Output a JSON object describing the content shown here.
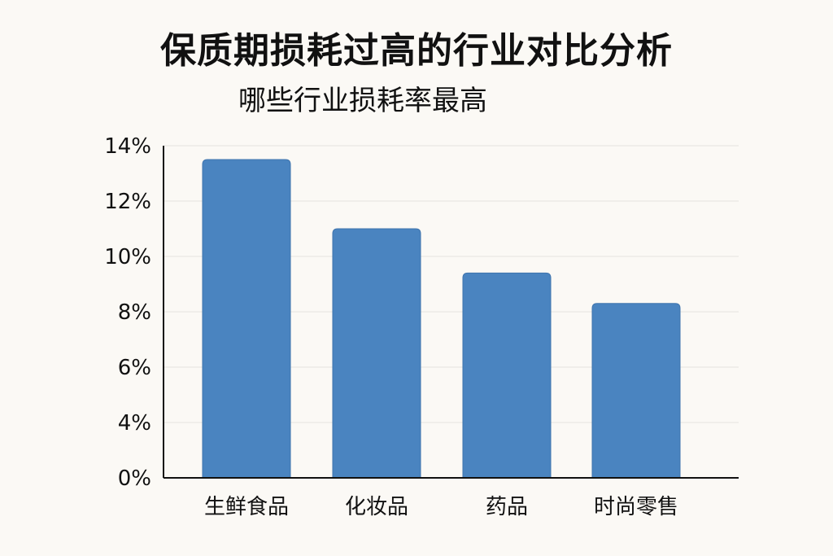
{
  "title": "保质期损耗过高的行业对比分析",
  "subtitle": "哪些行业损耗率最高",
  "colors": {
    "bar": "#4a84c0",
    "bar_stroke": "#3f74ad",
    "grid": "#e4e2de",
    "axis": "#111111",
    "background": "#fbf9f5"
  },
  "chart_data": {
    "type": "bar",
    "title": "保质期损耗过高的行业对比分析",
    "subtitle": "哪些行业损耗率最高",
    "categories": [
      "生鲜食品",
      "化妆品",
      "药品",
      "时尚零售"
    ],
    "values": [
      13.5,
      11,
      9.4,
      8.3
    ],
    "unit": "%",
    "yticks": [
      0,
      4,
      6,
      8,
      10,
      12,
      14
    ],
    "ytick_labels": [
      "0%",
      "4%",
      "6%",
      "8%",
      "10%",
      "12%",
      "14%"
    ],
    "ylim": [
      2,
      14
    ],
    "grid": true,
    "legend": "none"
  }
}
